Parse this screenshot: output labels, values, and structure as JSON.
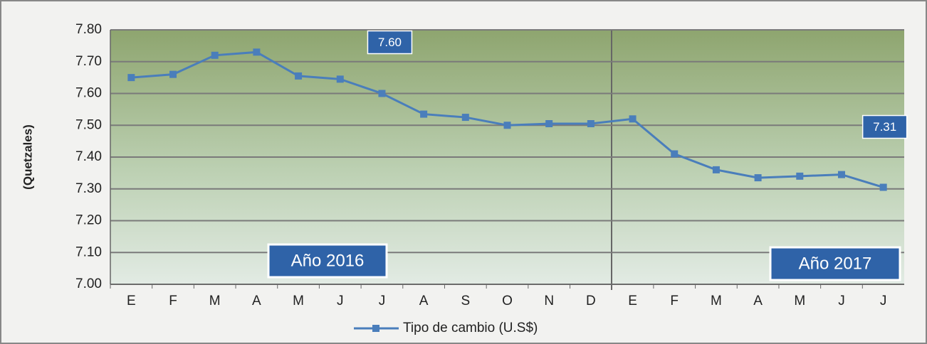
{
  "chart_data": {
    "type": "line",
    "y_label": "(Quetzales)",
    "categories": [
      "E",
      "F",
      "M",
      "A",
      "M",
      "J",
      "J",
      "A",
      "S",
      "O",
      "N",
      "D",
      "E",
      "F",
      "M",
      "A",
      "M",
      "J",
      "J"
    ],
    "series": [
      {
        "name": "Tipo de cambio (U.S$)",
        "color": "#4a7ebb",
        "values": [
          7.65,
          7.66,
          7.72,
          7.73,
          7.655,
          7.645,
          7.6,
          7.535,
          7.525,
          7.5,
          7.505,
          7.505,
          7.52,
          7.41,
          7.36,
          7.335,
          7.34,
          7.345,
          7.305
        ],
        "value_labels": [
          null,
          null,
          null,
          null,
          null,
          null,
          "7.60",
          null,
          null,
          null,
          null,
          null,
          null,
          null,
          null,
          null,
          null,
          null,
          "7.31"
        ]
      }
    ],
    "ylim": [
      7.0,
      7.8
    ],
    "yticks": [
      {
        "value": 7.0,
        "label": "7.00"
      },
      {
        "value": 7.1,
        "label": "7.10"
      },
      {
        "value": 7.2,
        "label": "7.20"
      },
      {
        "value": 7.3,
        "label": "7.30"
      },
      {
        "value": 7.4,
        "label": "7.40"
      },
      {
        "value": 7.5,
        "label": "7.50"
      },
      {
        "value": 7.6,
        "label": "7.60"
      },
      {
        "value": 7.7,
        "label": "7.70"
      },
      {
        "value": 7.8,
        "label": "7.80"
      }
    ],
    "grid": true,
    "annotations": [
      "Año 2016",
      "Año 2017"
    ],
    "legend": "bottom"
  }
}
